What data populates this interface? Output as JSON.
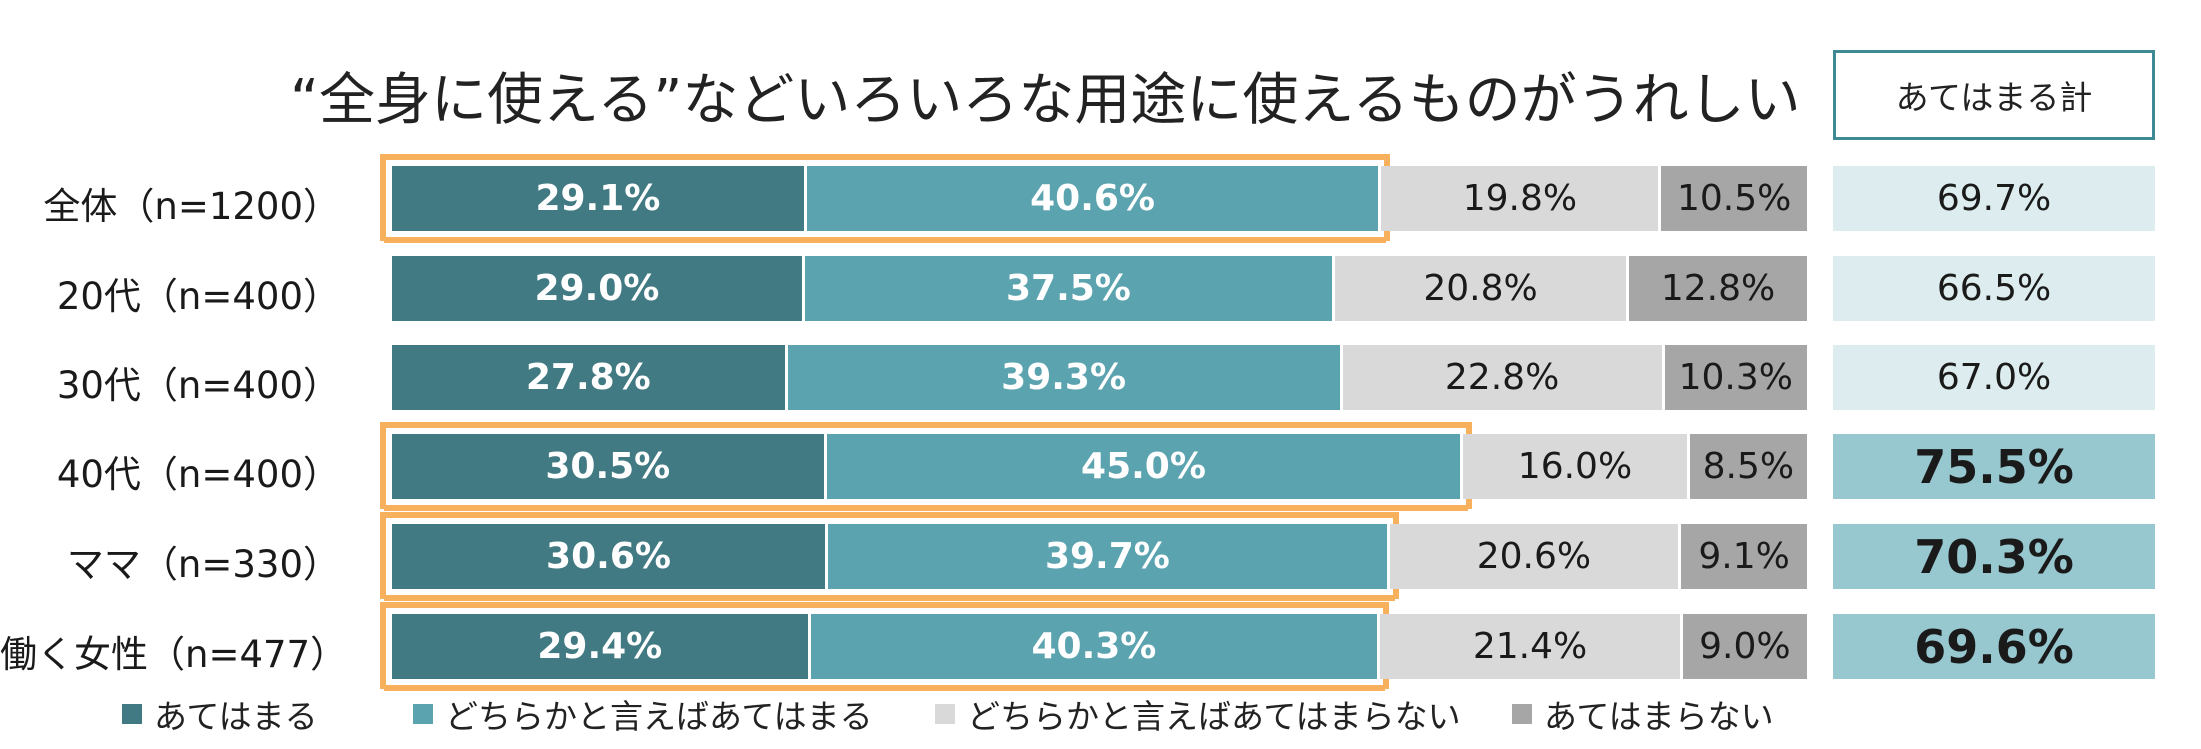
{
  "title": "“全身に使える”などいろいろな用途に使えるものがうれしい",
  "summary_header": "あてはまる計",
  "colors": {
    "dark": "#417a83",
    "mid": "#5ba3af",
    "light": "#d9d9d9",
    "gray": "#a6a6a6",
    "sum_normal": "#ddecee",
    "sum_highlight": "#97c7cf",
    "highlight_frame": "#f7b15d"
  },
  "chart_data": {
    "type": "bar",
    "orientation": "horizontal",
    "stacked": true,
    "title": "“全身に使える”などいろいろな用途に使えるものがうれしい",
    "categories": [
      "全体（n=1200）",
      "20代（n=400）",
      "30代（n=400）",
      "40代（n=400）",
      "ママ（n=330）",
      "働く女性（n=477）"
    ],
    "series": [
      {
        "name": "あてはまる",
        "values": [
          29.1,
          29.0,
          27.8,
          30.5,
          30.6,
          29.4
        ],
        "labels": [
          "29.1%",
          "29.0%",
          "27.8%",
          "30.5%",
          "30.6%",
          "29.4%"
        ]
      },
      {
        "name": "どちらかと言えばあてはまる",
        "values": [
          40.6,
          37.5,
          39.3,
          45.0,
          39.7,
          40.3
        ],
        "labels": [
          "40.6%",
          "37.5%",
          "39.3%",
          "45.0%",
          "39.7%",
          "40.3%"
        ]
      },
      {
        "name": "どちらかと言えばあてはまらない",
        "values": [
          19.8,
          20.8,
          22.8,
          16.0,
          20.6,
          21.4
        ],
        "labels": [
          "19.8%",
          "20.8%",
          "22.8%",
          "16.0%",
          "20.6%",
          "21.4%"
        ]
      },
      {
        "name": "あてはまらない",
        "values": [
          10.5,
          12.8,
          10.3,
          8.5,
          9.1,
          9.0
        ],
        "labels": [
          "10.5%",
          "12.8%",
          "10.3%",
          "8.5%",
          "9.1%",
          "9.0%"
        ]
      }
    ],
    "summary": {
      "header": "あてはまる計",
      "values": [
        69.7,
        66.5,
        67.0,
        75.5,
        70.3,
        69.6
      ],
      "labels": [
        "69.7%",
        "66.5%",
        "67.0%",
        "75.5%",
        "70.3%",
        "69.6%"
      ],
      "emphasized": [
        false,
        false,
        false,
        true,
        true,
        true
      ]
    },
    "highlighted_rows": [
      true,
      false,
      false,
      true,
      true,
      true
    ],
    "legend": [
      "あてはまる",
      "どちらかと言えばあてはまる",
      "どちらかと言えばあてはまらない",
      "あてはまらない"
    ],
    "xlim": [
      0,
      100
    ],
    "legend_position": "bottom"
  }
}
